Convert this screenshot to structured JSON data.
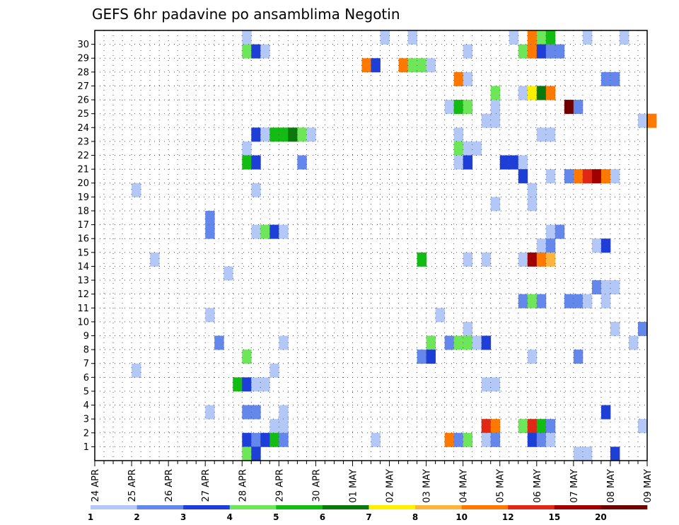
{
  "chart_data": {
    "type": "heatmap",
    "title": "GEFS 6hr padavine po ansamblima Negotin",
    "xlabel": "",
    "ylabel": "",
    "y_categories": [
      "1",
      "2",
      "3",
      "4",
      "5",
      "6",
      "7",
      "8",
      "9",
      "10",
      "11",
      "12",
      "13",
      "14",
      "15",
      "16",
      "17",
      "18",
      "19",
      "20",
      "21",
      "22",
      "23",
      "24",
      "25",
      "26",
      "27",
      "28",
      "29",
      "30"
    ],
    "x_tick_labels": [
      "24 APR",
      "25 APR",
      "26 APR",
      "27 APR",
      "28 APR",
      "29 APR",
      "30 APR",
      "01 MAY",
      "02 MAY",
      "03 MAY",
      "04 MAY",
      "05 MAY",
      "06 MAY",
      "07 MAY",
      "08 MAY",
      "09 MAY"
    ],
    "x_step": "6hr",
    "grid": true,
    "colorbar": {
      "tick_labels": [
        "1",
        "2",
        "3",
        "4",
        "5",
        "6",
        "7",
        "8",
        "10",
        "12",
        "15",
        "20"
      ],
      "colors": [
        "#b4c8f8",
        "#6487ec",
        "#1e3ed8",
        "#6ee65a",
        "#12bc12",
        "#0a780a",
        "#fff000",
        "#ffb43c",
        "#ff7800",
        "#e12814",
        "#a00000",
        "#6e0000"
      ]
    },
    "cells": [
      [
        30,
        16,
        1
      ],
      [
        30,
        31,
        1
      ],
      [
        30,
        34,
        1
      ],
      [
        30,
        45,
        1
      ],
      [
        30,
        47,
        10
      ],
      [
        30,
        48,
        4
      ],
      [
        30,
        49,
        5
      ],
      [
        30,
        53,
        1
      ],
      [
        30,
        57,
        1
      ],
      [
        29,
        16,
        4
      ],
      [
        29,
        17,
        3
      ],
      [
        29,
        18,
        1
      ],
      [
        29,
        40,
        1
      ],
      [
        29,
        46,
        4
      ],
      [
        29,
        47,
        10
      ],
      [
        29,
        48,
        3
      ],
      [
        29,
        49,
        2
      ],
      [
        29,
        50,
        2
      ],
      [
        28,
        29,
        10
      ],
      [
        28,
        30,
        3
      ],
      [
        28,
        33,
        10
      ],
      [
        28,
        34,
        4
      ],
      [
        28,
        35,
        4
      ],
      [
        28,
        36,
        1
      ],
      [
        27,
        39,
        10
      ],
      [
        27,
        40,
        1
      ],
      [
        27,
        55,
        2
      ],
      [
        27,
        56,
        2
      ],
      [
        26,
        43,
        4
      ],
      [
        26,
        46,
        1
      ],
      [
        26,
        47,
        7
      ],
      [
        26,
        48,
        6
      ],
      [
        26,
        49,
        10
      ],
      [
        25,
        38,
        1
      ],
      [
        25,
        39,
        5
      ],
      [
        25,
        40,
        4
      ],
      [
        25,
        43,
        1
      ],
      [
        25,
        51,
        20
      ],
      [
        25,
        52,
        2
      ],
      [
        24,
        42,
        1
      ],
      [
        24,
        43,
        1
      ],
      [
        24,
        59,
        1
      ],
      [
        24,
        60,
        10
      ],
      [
        23,
        17,
        3
      ],
      [
        23,
        18,
        1
      ],
      [
        23,
        19,
        5
      ],
      [
        23,
        20,
        5
      ],
      [
        23,
        21,
        6
      ],
      [
        23,
        22,
        4
      ],
      [
        23,
        23,
        1
      ],
      [
        23,
        39,
        1
      ],
      [
        23,
        48,
        1
      ],
      [
        23,
        49,
        1
      ],
      [
        22,
        16,
        1
      ],
      [
        22,
        39,
        4
      ],
      [
        22,
        40,
        1
      ],
      [
        22,
        41,
        1
      ],
      [
        21,
        16,
        5
      ],
      [
        21,
        17,
        3
      ],
      [
        21,
        22,
        2
      ],
      [
        21,
        39,
        1
      ],
      [
        21,
        40,
        3
      ],
      [
        21,
        44,
        3
      ],
      [
        21,
        45,
        3
      ],
      [
        21,
        46,
        1
      ],
      [
        20,
        46,
        3
      ],
      [
        20,
        49,
        1
      ],
      [
        20,
        51,
        2
      ],
      [
        20,
        52,
        10
      ],
      [
        20,
        53,
        12
      ],
      [
        20,
        54,
        15
      ],
      [
        20,
        55,
        10
      ],
      [
        20,
        56,
        1
      ],
      [
        19,
        4,
        1
      ],
      [
        19,
        17,
        1
      ],
      [
        19,
        47,
        1
      ],
      [
        18,
        43,
        1
      ],
      [
        18,
        47,
        1
      ],
      [
        17,
        12,
        2
      ],
      [
        16,
        12,
        2
      ],
      [
        16,
        17,
        1
      ],
      [
        16,
        18,
        4
      ],
      [
        16,
        19,
        3
      ],
      [
        16,
        20,
        1
      ],
      [
        16,
        49,
        1
      ],
      [
        16,
        50,
        2
      ],
      [
        15,
        48,
        1
      ],
      [
        15,
        49,
        2
      ],
      [
        15,
        54,
        1
      ],
      [
        15,
        55,
        3
      ],
      [
        14,
        6,
        1
      ],
      [
        14,
        35,
        5
      ],
      [
        14,
        40,
        1
      ],
      [
        14,
        42,
        1
      ],
      [
        14,
        46,
        1
      ],
      [
        14,
        47,
        15
      ],
      [
        14,
        48,
        10
      ],
      [
        14,
        49,
        8
      ],
      [
        13,
        14,
        1
      ],
      [
        12,
        54,
        2
      ],
      [
        12,
        55,
        1
      ],
      [
        12,
        56,
        1
      ],
      [
        11,
        46,
        2
      ],
      [
        11,
        47,
        4
      ],
      [
        11,
        48,
        2
      ],
      [
        11,
        51,
        2
      ],
      [
        11,
        52,
        2
      ],
      [
        11,
        53,
        1
      ],
      [
        11,
        55,
        1
      ],
      [
        10,
        12,
        1
      ],
      [
        10,
        37,
        1
      ],
      [
        9,
        40,
        1
      ],
      [
        9,
        56,
        1
      ],
      [
        9,
        59,
        2
      ],
      [
        8,
        13,
        2
      ],
      [
        8,
        20,
        1
      ],
      [
        8,
        36,
        4
      ],
      [
        8,
        38,
        2
      ],
      [
        8,
        39,
        4
      ],
      [
        8,
        40,
        4
      ],
      [
        8,
        41,
        1
      ],
      [
        8,
        42,
        3
      ],
      [
        8,
        58,
        1
      ],
      [
        7,
        16,
        4
      ],
      [
        7,
        35,
        2
      ],
      [
        7,
        36,
        3
      ],
      [
        7,
        47,
        1
      ],
      [
        7,
        52,
        2
      ],
      [
        6,
        4,
        1
      ],
      [
        6,
        19,
        1
      ],
      [
        5,
        15,
        5
      ],
      [
        5,
        16,
        3
      ],
      [
        5,
        17,
        1
      ],
      [
        5,
        18,
        1
      ],
      [
        5,
        42,
        1
      ],
      [
        5,
        43,
        1
      ],
      [
        3,
        12,
        1
      ],
      [
        3,
        16,
        2
      ],
      [
        3,
        17,
        2
      ],
      [
        3,
        20,
        1
      ],
      [
        3,
        55,
        3
      ],
      [
        2,
        19,
        1
      ],
      [
        2,
        20,
        1
      ],
      [
        2,
        42,
        12
      ],
      [
        2,
        43,
        10
      ],
      [
        2,
        46,
        4
      ],
      [
        2,
        47,
        12
      ],
      [
        2,
        48,
        5
      ],
      [
        2,
        49,
        2
      ],
      [
        2,
        59,
        1
      ],
      [
        1,
        16,
        3
      ],
      [
        1,
        17,
        2
      ],
      [
        1,
        18,
        3
      ],
      [
        1,
        19,
        5
      ],
      [
        1,
        20,
        2
      ],
      [
        1,
        30,
        1
      ],
      [
        1,
        38,
        10
      ],
      [
        1,
        39,
        2
      ],
      [
        1,
        40,
        4
      ],
      [
        1,
        42,
        1
      ],
      [
        1,
        43,
        2
      ],
      [
        1,
        47,
        3
      ],
      [
        1,
        48,
        2
      ],
      [
        1,
        49,
        1
      ],
      [
        0,
        16,
        4
      ],
      [
        0,
        17,
        3
      ],
      [
        0,
        52,
        1
      ],
      [
        0,
        53,
        1
      ],
      [
        0,
        56,
        3
      ]
    ]
  }
}
